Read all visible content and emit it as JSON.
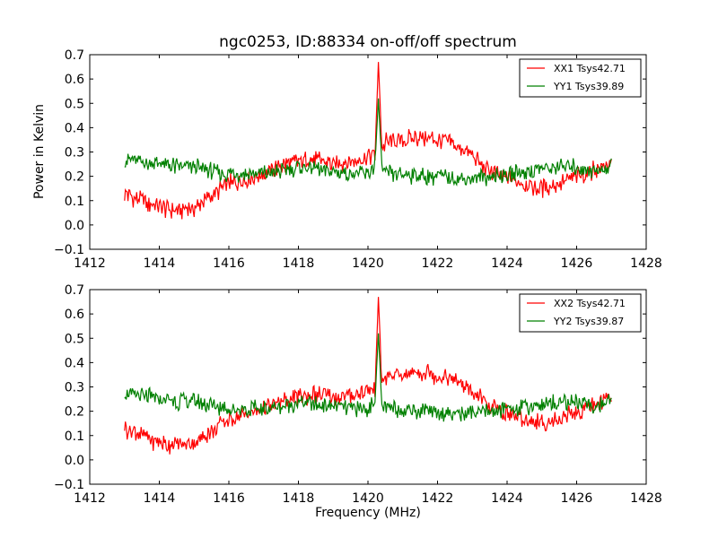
{
  "figure": {
    "title": "ngc0253, ID:88334 on-off/off spectrum",
    "ylabel": "Power in Kelvin",
    "xlabel": "Frequency (MHz)"
  },
  "chart_data": [
    {
      "type": "line",
      "title": "ngc0253, ID:88334 on-off/off spectrum",
      "xlabel": "",
      "ylabel": "Power in Kelvin",
      "xlim": [
        1412,
        1428
      ],
      "ylim": [
        -0.1,
        0.7
      ],
      "xticks": [
        1412,
        1414,
        1416,
        1418,
        1420,
        1422,
        1424,
        1426,
        1428
      ],
      "yticks": [
        -0.1,
        0.0,
        0.1,
        0.2,
        0.3,
        0.4,
        0.5,
        0.6,
        0.7
      ],
      "grid": false,
      "legend_position": "top-right",
      "x": [
        1413.0,
        1413.5,
        1414.0,
        1414.5,
        1415.0,
        1415.5,
        1416.0,
        1416.5,
        1417.0,
        1417.5,
        1418.0,
        1418.5,
        1419.0,
        1419.5,
        1420.0,
        1420.2,
        1420.3,
        1420.4,
        1420.5,
        1421.0,
        1421.5,
        1422.0,
        1422.5,
        1423.0,
        1423.5,
        1424.0,
        1424.5,
        1425.0,
        1425.5,
        1426.0,
        1426.5,
        1427.0
      ],
      "series": [
        {
          "name": "XX1 Tsys42.71",
          "color": "#ff0000",
          "values": [
            0.13,
            0.1,
            0.07,
            0.06,
            0.07,
            0.12,
            0.17,
            0.19,
            0.21,
            0.24,
            0.26,
            0.27,
            0.25,
            0.26,
            0.28,
            0.29,
            0.67,
            0.32,
            0.34,
            0.35,
            0.36,
            0.35,
            0.33,
            0.28,
            0.22,
            0.19,
            0.17,
            0.15,
            0.17,
            0.2,
            0.23,
            0.25
          ]
        },
        {
          "name": "YY1 Tsys39.89",
          "color": "#008000",
          "values": [
            0.27,
            0.26,
            0.25,
            0.24,
            0.24,
            0.22,
            0.21,
            0.21,
            0.21,
            0.22,
            0.24,
            0.23,
            0.22,
            0.21,
            0.21,
            0.25,
            0.52,
            0.23,
            0.21,
            0.21,
            0.2,
            0.2,
            0.19,
            0.19,
            0.2,
            0.21,
            0.22,
            0.23,
            0.24,
            0.24,
            0.22,
            0.24
          ]
        }
      ]
    },
    {
      "type": "line",
      "title": "",
      "xlabel": "Frequency (MHz)",
      "ylabel": "",
      "xlim": [
        1412,
        1428
      ],
      "ylim": [
        -0.1,
        0.7
      ],
      "xticks": [
        1412,
        1414,
        1416,
        1418,
        1420,
        1422,
        1424,
        1426,
        1428
      ],
      "yticks": [
        -0.1,
        0.0,
        0.1,
        0.2,
        0.3,
        0.4,
        0.5,
        0.6,
        0.7
      ],
      "grid": false,
      "legend_position": "top-right",
      "x": [
        1413.0,
        1413.5,
        1414.0,
        1414.5,
        1415.0,
        1415.5,
        1416.0,
        1416.5,
        1417.0,
        1417.5,
        1418.0,
        1418.5,
        1419.0,
        1419.5,
        1420.0,
        1420.2,
        1420.3,
        1420.4,
        1420.5,
        1421.0,
        1421.5,
        1422.0,
        1422.5,
        1423.0,
        1423.5,
        1424.0,
        1424.5,
        1425.0,
        1425.5,
        1426.0,
        1426.5,
        1427.0
      ],
      "series": [
        {
          "name": "XX2 Tsys42.71",
          "color": "#ff0000",
          "values": [
            0.13,
            0.1,
            0.07,
            0.06,
            0.07,
            0.12,
            0.17,
            0.19,
            0.21,
            0.24,
            0.26,
            0.27,
            0.25,
            0.26,
            0.28,
            0.29,
            0.67,
            0.32,
            0.34,
            0.35,
            0.36,
            0.35,
            0.33,
            0.28,
            0.22,
            0.19,
            0.17,
            0.15,
            0.17,
            0.2,
            0.23,
            0.25
          ]
        },
        {
          "name": "YY2 Tsys39.87",
          "color": "#008000",
          "values": [
            0.27,
            0.26,
            0.25,
            0.24,
            0.24,
            0.22,
            0.21,
            0.21,
            0.21,
            0.22,
            0.24,
            0.23,
            0.22,
            0.21,
            0.21,
            0.25,
            0.52,
            0.23,
            0.21,
            0.21,
            0.2,
            0.2,
            0.19,
            0.19,
            0.2,
            0.21,
            0.22,
            0.23,
            0.24,
            0.24,
            0.22,
            0.24
          ]
        }
      ]
    }
  ]
}
